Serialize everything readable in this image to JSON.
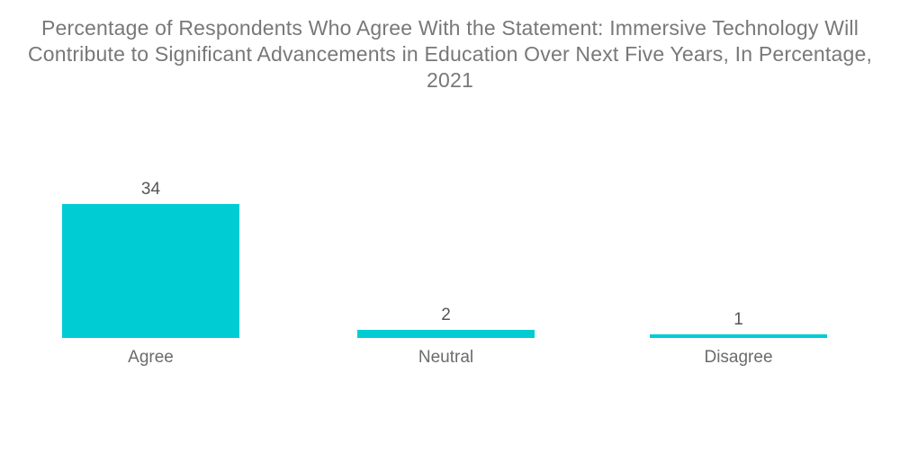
{
  "chart_data": {
    "type": "bar",
    "title": "Percentage of Respondents Who Agree With the Statement: Immersive Technology Will Contribute to Significant Advancements in Education Over Next Five Years, In Percentage, 2021",
    "categories": [
      "Agree",
      "Neutral",
      "Disagree"
    ],
    "values": [
      34,
      2,
      1
    ],
    "xlabel": "",
    "ylabel": "",
    "ylim": [
      0,
      34
    ],
    "grid": false,
    "legend": false,
    "value_labels_shown": true
  },
  "colors": {
    "bar": "#00CDD3",
    "title_text": "#787878",
    "value_text": "#565656",
    "category_text": "#6b6b6b",
    "background": "#ffffff"
  }
}
